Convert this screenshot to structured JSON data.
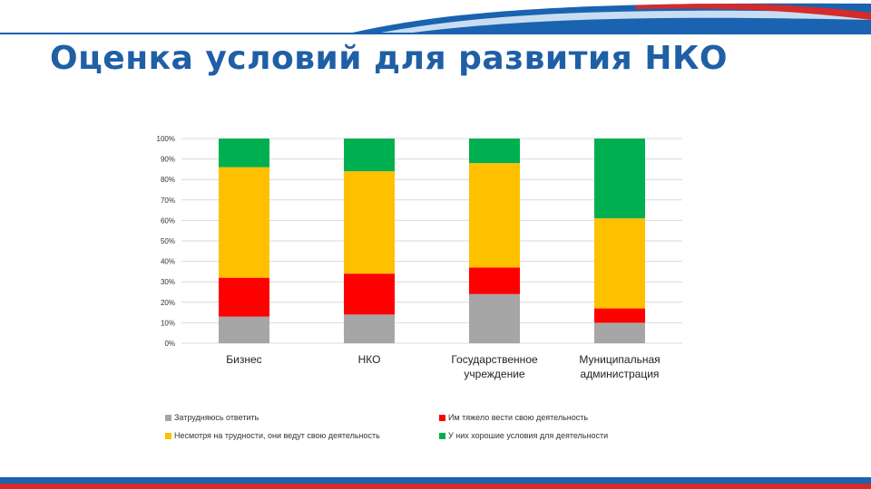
{
  "title": "Оценка условий для развития НКО",
  "colors": {
    "title": "#1f5fa6",
    "banner_blue": "#1a63b0",
    "banner_red": "#d42b2b"
  },
  "chart_data": {
    "type": "bar",
    "stacked": true,
    "normalized_percent": true,
    "categories": [
      "Бизнес",
      "НКО",
      "Государственное учреждение",
      "Муниципальная администрация"
    ],
    "category_lines": [
      [
        "Бизнес"
      ],
      [
        "НКО"
      ],
      [
        "Государственное",
        "учреждение"
      ],
      [
        "Муниципальная",
        "администрация"
      ]
    ],
    "series": [
      {
        "name": "Затрудняюсь ответить",
        "color": "#a6a6a6",
        "values": [
          13,
          14,
          24,
          10
        ]
      },
      {
        "name": "Им тяжело вести свою деятельность",
        "color": "#ff0000",
        "values": [
          19,
          20,
          13,
          7
        ]
      },
      {
        "name": "Несмотря на трудности, они ведут свою деятельность",
        "color": "#ffc000",
        "values": [
          54,
          50,
          51,
          44
        ]
      },
      {
        "name": "У них хорошие условия для деятельности",
        "color": "#00b050",
        "values": [
          14,
          16,
          12,
          39
        ]
      }
    ],
    "yticks": [
      "0%",
      "10%",
      "20%",
      "30%",
      "40%",
      "50%",
      "60%",
      "70%",
      "80%",
      "90%",
      "100%"
    ],
    "ylim": [
      0,
      100
    ],
    "grid": true,
    "legend_position": "bottom"
  }
}
